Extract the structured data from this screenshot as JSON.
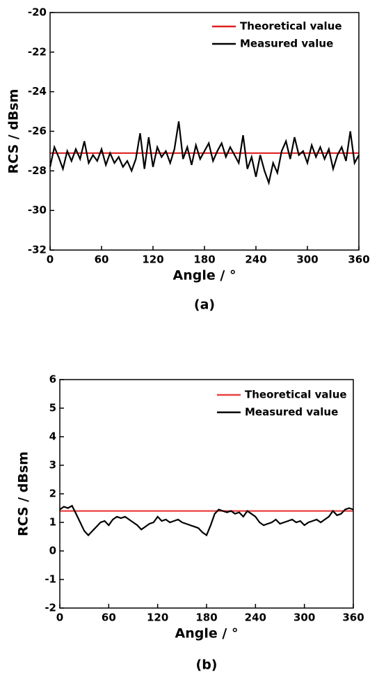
{
  "chart_data": [
    {
      "type": "line",
      "caption": "(a)",
      "xlabel": "Angle / °",
      "ylabel": "RCS / dBsm",
      "xlim": [
        0,
        360
      ],
      "ylim": [
        -32,
        -20
      ],
      "xticks": [
        0,
        60,
        120,
        180,
        240,
        300,
        360
      ],
      "yticks": [
        -32,
        -30,
        -28,
        -26,
        -24,
        -22,
        -20
      ],
      "legend": "upper right",
      "series": [
        {
          "name": "Theoretical value",
          "color": "#e02020",
          "x": [
            0,
            360
          ],
          "values": [
            -27.1,
            -27.1
          ]
        },
        {
          "name": "Measured value",
          "color": "#000000",
          "x": [
            0,
            5,
            10,
            15,
            20,
            25,
            30,
            35,
            40,
            45,
            50,
            55,
            60,
            65,
            70,
            75,
            80,
            85,
            90,
            95,
            100,
            105,
            110,
            115,
            120,
            125,
            130,
            135,
            140,
            145,
            150,
            155,
            160,
            165,
            170,
            175,
            180,
            185,
            190,
            195,
            200,
            205,
            210,
            215,
            220,
            225,
            230,
            235,
            240,
            245,
            250,
            255,
            260,
            265,
            270,
            275,
            280,
            285,
            290,
            295,
            300,
            305,
            310,
            315,
            320,
            325,
            330,
            335,
            340,
            345,
            350,
            355,
            360
          ],
          "values": [
            -27.8,
            -26.8,
            -27.3,
            -27.9,
            -27.0,
            -27.5,
            -26.9,
            -27.4,
            -26.5,
            -27.6,
            -27.2,
            -27.5,
            -26.9,
            -27.7,
            -27.1,
            -27.6,
            -27.3,
            -27.8,
            -27.5,
            -28.0,
            -27.4,
            -26.1,
            -27.9,
            -26.3,
            -27.8,
            -26.8,
            -27.3,
            -27.0,
            -27.6,
            -26.9,
            -25.5,
            -27.4,
            -26.8,
            -27.7,
            -26.7,
            -27.4,
            -27.0,
            -26.6,
            -27.5,
            -27.0,
            -26.6,
            -27.3,
            -26.8,
            -27.2,
            -27.6,
            -26.2,
            -27.9,
            -27.3,
            -28.3,
            -27.2,
            -28.0,
            -28.6,
            -27.6,
            -28.1,
            -27.0,
            -26.5,
            -27.4,
            -26.3,
            -27.2,
            -27.0,
            -27.6,
            -26.7,
            -27.3,
            -26.8,
            -27.4,
            -26.9,
            -27.9,
            -27.2,
            -26.8,
            -27.5,
            -26.0,
            -27.6,
            -27.2
          ]
        }
      ]
    },
    {
      "type": "line",
      "caption": "(b)",
      "xlabel": "Angle / °",
      "ylabel": "RCS / dBsm",
      "xlim": [
        0,
        360
      ],
      "ylim": [
        -2,
        6
      ],
      "xticks": [
        0,
        60,
        120,
        180,
        240,
        300,
        360
      ],
      "yticks": [
        -2,
        -1,
        0,
        1,
        2,
        3,
        4,
        5,
        6
      ],
      "legend": "upper right",
      "series": [
        {
          "name": "Theoretical value",
          "color": "#e84040",
          "x": [
            0,
            360
          ],
          "values": [
            1.4,
            1.4
          ]
        },
        {
          "name": "Measured value",
          "color": "#000000",
          "x": [
            0,
            5,
            10,
            15,
            20,
            25,
            30,
            35,
            40,
            45,
            50,
            55,
            60,
            65,
            70,
            75,
            80,
            85,
            90,
            95,
            100,
            105,
            110,
            115,
            120,
            125,
            130,
            135,
            140,
            145,
            150,
            155,
            160,
            165,
            170,
            175,
            180,
            185,
            190,
            195,
            200,
            205,
            210,
            215,
            220,
            225,
            230,
            235,
            240,
            245,
            250,
            255,
            260,
            265,
            270,
            275,
            280,
            285,
            290,
            295,
            300,
            305,
            310,
            315,
            320,
            325,
            330,
            335,
            340,
            345,
            350,
            355,
            360
          ],
          "values": [
            1.45,
            1.55,
            1.5,
            1.58,
            1.3,
            1.0,
            0.7,
            0.55,
            0.7,
            0.85,
            1.0,
            1.05,
            0.9,
            1.1,
            1.2,
            1.15,
            1.2,
            1.1,
            1.0,
            0.9,
            0.75,
            0.85,
            0.95,
            1.0,
            1.2,
            1.05,
            1.1,
            1.0,
            1.05,
            1.1,
            1.0,
            0.95,
            0.9,
            0.85,
            0.8,
            0.65,
            0.55,
            0.9,
            1.3,
            1.45,
            1.4,
            1.35,
            1.4,
            1.3,
            1.35,
            1.2,
            1.4,
            1.3,
            1.2,
            1.0,
            0.9,
            0.95,
            1.0,
            1.1,
            0.95,
            1.0,
            1.05,
            1.1,
            1.0,
            1.05,
            0.9,
            1.0,
            1.05,
            1.1,
            1.0,
            1.1,
            1.2,
            1.4,
            1.25,
            1.3,
            1.45,
            1.5,
            1.45
          ]
        }
      ]
    }
  ]
}
